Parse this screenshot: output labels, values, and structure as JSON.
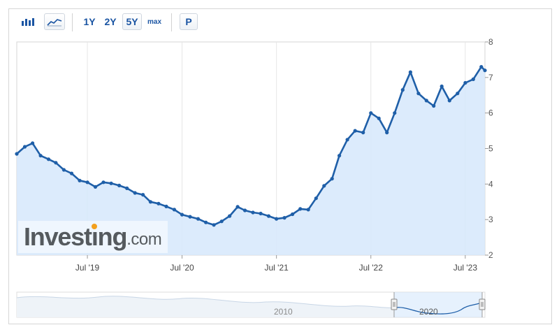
{
  "toolbar": {
    "bar_icon": "bar-chart-icon",
    "line_icon": "line-chart-icon",
    "ranges": [
      "1Y",
      "2Y",
      "5Y",
      "max"
    ],
    "selected_range": "5Y",
    "p_label": "P"
  },
  "logo": {
    "main": "Investing",
    "suffix": ".com",
    "accent_color": "#f3a01d"
  },
  "colors": {
    "line": "#1f5fa8",
    "fill": "#d6e8fb",
    "grid": "#e6e6e6"
  },
  "chart_data": {
    "type": "area",
    "title": "",
    "xlabel": "",
    "ylabel": "",
    "x_ticks": [
      "Jul '19",
      "Jul '20",
      "Jul '21",
      "Jul '22",
      "Jul '23"
    ],
    "x_tick_dates": [
      "2019-07-01",
      "2020-07-01",
      "2021-07-01",
      "2022-07-01",
      "2023-07-01"
    ],
    "x_range": [
      "2018-10-01",
      "2023-09-15"
    ],
    "y_ticks": [
      2,
      3,
      4,
      5,
      6,
      7,
      8
    ],
    "ylim": [
      2,
      8
    ],
    "grid": true,
    "y_axis_side": "right",
    "series": [
      {
        "x": [
          "2018-10-01",
          "2018-11-01",
          "2018-12-01",
          "2019-01-01",
          "2019-02-01",
          "2019-03-01",
          "2019-04-01",
          "2019-05-01",
          "2019-06-01",
          "2019-07-01",
          "2019-08-01",
          "2019-09-01",
          "2019-10-01",
          "2019-11-01",
          "2019-12-01",
          "2020-01-01",
          "2020-02-01",
          "2020-03-01",
          "2020-04-01",
          "2020-05-01",
          "2020-06-01",
          "2020-07-01",
          "2020-08-01",
          "2020-09-01",
          "2020-10-01",
          "2020-11-01",
          "2020-12-01",
          "2021-01-01",
          "2021-02-01",
          "2021-03-01",
          "2021-04-01",
          "2021-05-01",
          "2021-06-01",
          "2021-07-01",
          "2021-08-01",
          "2021-09-01",
          "2021-10-01",
          "2021-11-01",
          "2021-12-01",
          "2022-01-01",
          "2022-02-01",
          "2022-03-01",
          "2022-04-01",
          "2022-05-01",
          "2022-06-01",
          "2022-07-01",
          "2022-08-01",
          "2022-09-01",
          "2022-10-01",
          "2022-11-01",
          "2022-12-01",
          "2023-01-01",
          "2023-02-01",
          "2023-03-01",
          "2023-04-01",
          "2023-05-01",
          "2023-06-01",
          "2023-07-01",
          "2023-08-01",
          "2023-09-01",
          "2023-09-15"
        ],
        "values": [
          4.85,
          5.05,
          5.15,
          4.8,
          4.7,
          4.6,
          4.4,
          4.3,
          4.1,
          4.05,
          3.92,
          4.05,
          4.02,
          3.96,
          3.88,
          3.75,
          3.7,
          3.5,
          3.45,
          3.37,
          3.28,
          3.14,
          3.08,
          3.02,
          2.92,
          2.85,
          2.95,
          3.1,
          3.36,
          3.26,
          3.2,
          3.17,
          3.1,
          3.02,
          3.05,
          3.15,
          3.3,
          3.28,
          3.6,
          3.95,
          4.15,
          4.8,
          5.25,
          5.5,
          5.45,
          6.0,
          5.85,
          5.45,
          6.0,
          6.65,
          7.15,
          6.55,
          6.35,
          6.2,
          6.75,
          6.35,
          6.55,
          6.85,
          6.95,
          7.3,
          7.2
        ]
      }
    ]
  }
}
